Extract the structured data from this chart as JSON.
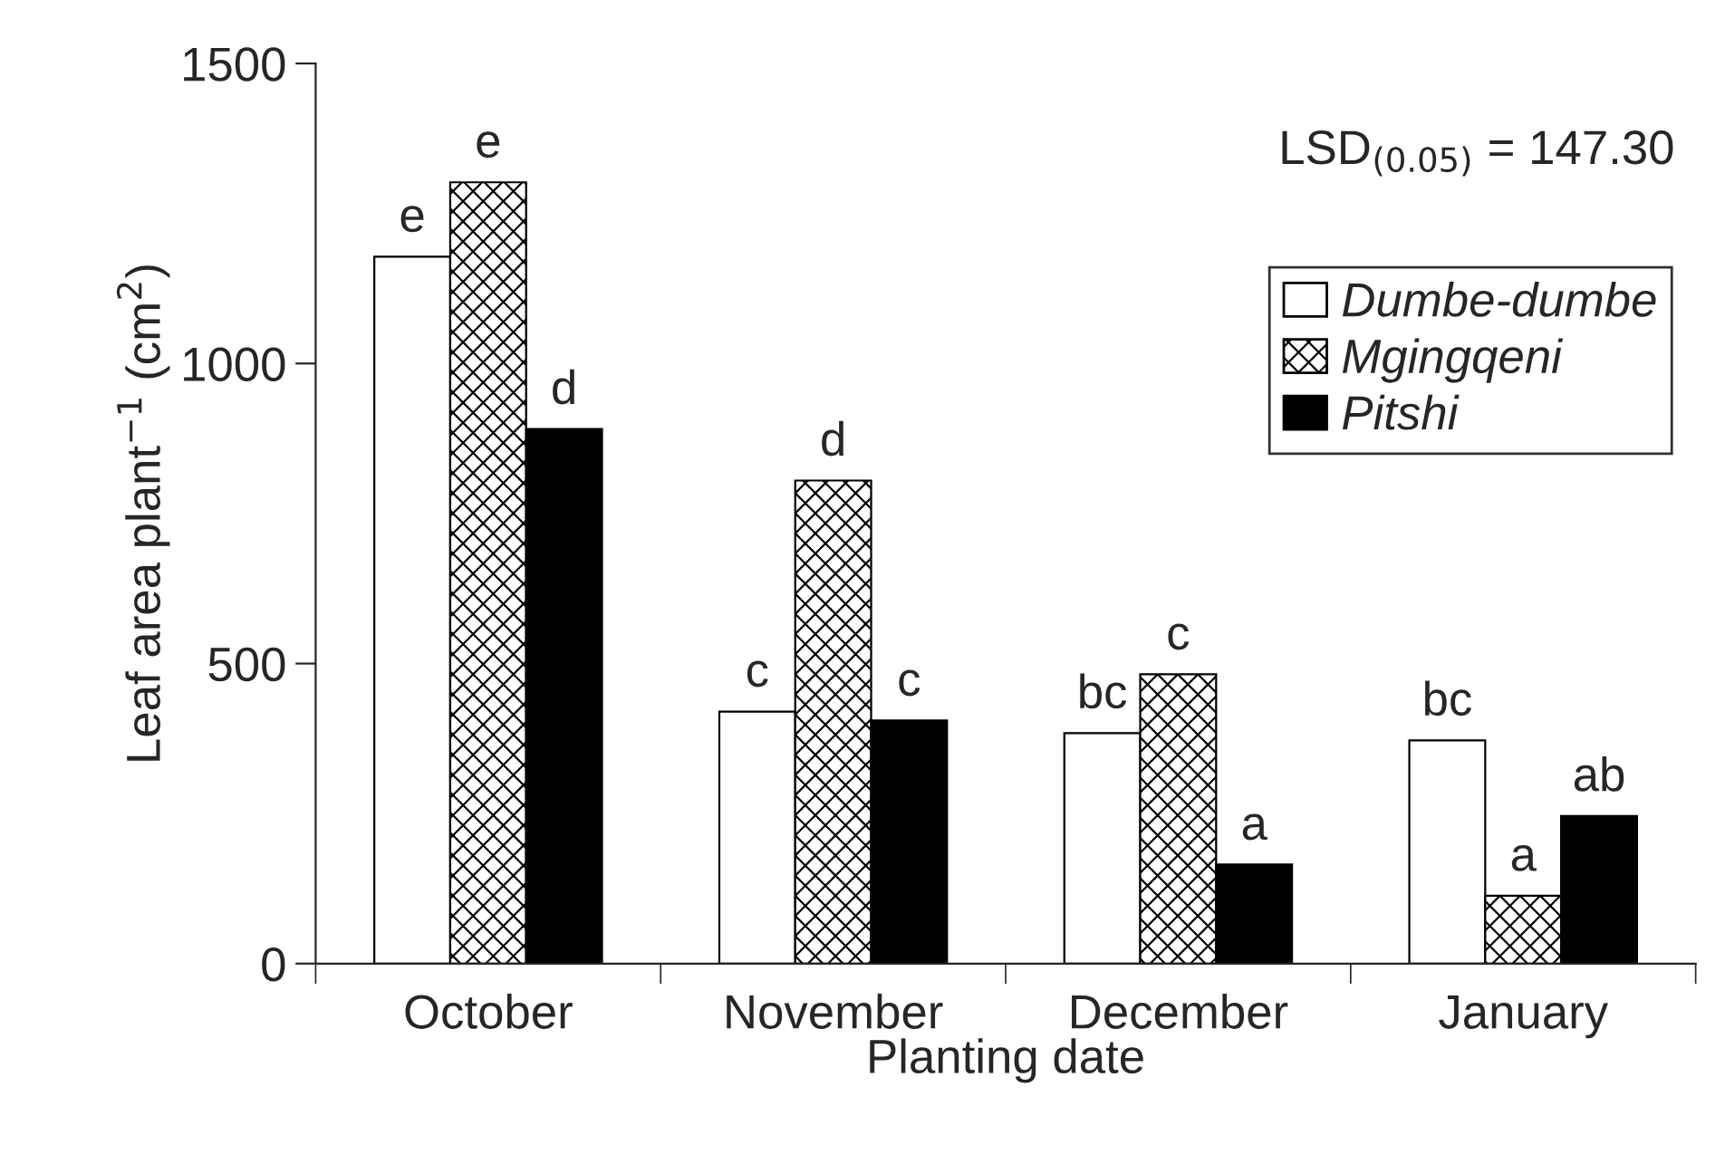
{
  "chart_data": {
    "type": "bar",
    "xlabel": "Planting date",
    "ylabel": "Leaf area plant$^{−1}$ (cm$^{2}$)",
    "categories": [
      "October",
      "November",
      "December",
      "January"
    ],
    "series": [
      {
        "name": "Dumbe-dumbe",
        "color": "#ffffff",
        "values": [
          1178,
          420,
          384,
          372
        ],
        "value_labels": [
          "e",
          "c",
          "bc",
          "bc"
        ]
      },
      {
        "name": "Mgingqeni",
        "color": "#000000",
        "values": [
          1302,
          805,
          482,
          113
        ],
        "value_labels": [
          "e",
          "d",
          "c",
          "a"
        ]
      },
      {
        "name": "Pitshi",
        "color": "#000000",
        "values": [
          891,
          405,
          165,
          246
        ],
        "value_labels": [
          "d",
          "c",
          "a",
          "ab"
        ]
      }
    ],
    "ylim": [
      0,
      1500
    ],
    "yticks": [
      0,
      500,
      1000,
      1500
    ],
    "annotations": [
      "LSD$_{(0.05)}$ = 147.30"
    ],
    "legend": "top right",
    "grid": false
  }
}
